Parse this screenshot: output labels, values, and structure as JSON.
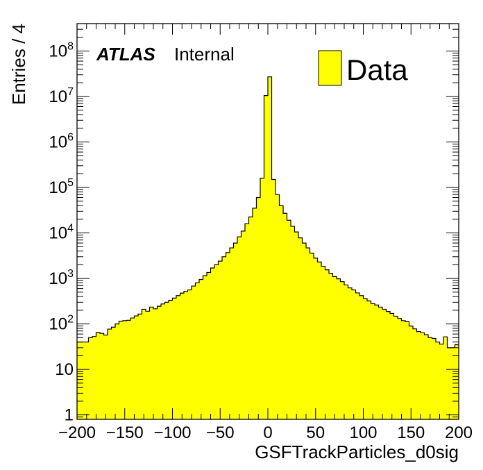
{
  "chart_data": {
    "type": "bar",
    "subtype": "histogram",
    "xlabel": "GSFTrackParticles_d0sig",
    "ylabel": "Entries / 4",
    "xlim": [
      -200,
      200
    ],
    "ylim": [
      0.8,
      400000000
    ],
    "y_scale": "log",
    "grid": false,
    "legend": {
      "position": "top-right",
      "entries": [
        "Data"
      ]
    },
    "experiment_label": "ATLAS",
    "status_label": "Internal",
    "bin_width": 4,
    "x_ticks": [
      "−200",
      "−150",
      "−100",
      "−50",
      "0",
      "50",
      "100",
      "150",
      "200"
    ],
    "x_tick_values": [
      -200,
      -150,
      -100,
      -50,
      0,
      50,
      100,
      150,
      200
    ],
    "y_ticks": [
      {
        "value": 1,
        "base": "1",
        "exp": ""
      },
      {
        "value": 10,
        "base": "10",
        "exp": ""
      },
      {
        "value": 100,
        "base": "10",
        "exp": "2"
      },
      {
        "value": 1000,
        "base": "10",
        "exp": "3"
      },
      {
        "value": 10000,
        "base": "10",
        "exp": "4"
      },
      {
        "value": 100000,
        "base": "10",
        "exp": "5"
      },
      {
        "value": 1000000,
        "base": "10",
        "exp": "6"
      },
      {
        "value": 10000000,
        "base": "10",
        "exp": "7"
      },
      {
        "value": 100000000,
        "base": "10",
        "exp": "8"
      }
    ],
    "series": [
      {
        "name": "Data",
        "color": "#ffff00",
        "edge_color": "#000000",
        "bin_low_edges": [
          -200,
          -196,
          -192,
          -188,
          -184,
          -180,
          -176,
          -172,
          -168,
          -164,
          -160,
          -156,
          -152,
          -148,
          -144,
          -140,
          -136,
          -132,
          -128,
          -124,
          -120,
          -116,
          -112,
          -108,
          -104,
          -100,
          -96,
          -92,
          -88,
          -84,
          -80,
          -76,
          -72,
          -68,
          -64,
          -60,
          -56,
          -52,
          -48,
          -44,
          -40,
          -36,
          -32,
          -28,
          -24,
          -20,
          -16,
          -12,
          -8,
          -4,
          0,
          4,
          8,
          12,
          16,
          20,
          24,
          28,
          32,
          36,
          40,
          44,
          48,
          52,
          56,
          60,
          64,
          68,
          72,
          76,
          80,
          84,
          88,
          92,
          96,
          100,
          104,
          108,
          112,
          116,
          120,
          124,
          128,
          132,
          136,
          140,
          144,
          148,
          152,
          156,
          160,
          164,
          168,
          172,
          176,
          180,
          184,
          188,
          192,
          196
        ],
        "values": [
          40,
          40,
          40,
          50,
          53,
          65,
          62,
          57,
          77,
          85,
          100,
          115,
          118,
          120,
          135,
          150,
          165,
          210,
          190,
          235,
          215,
          245,
          275,
          300,
          330,
          370,
          420,
          475,
          520,
          560,
          680,
          800,
          950,
          1150,
          1350,
          1700,
          2000,
          2400,
          3000,
          3700,
          4700,
          6000,
          8200,
          11000,
          16000,
          22500,
          35000,
          60000,
          160000,
          10500000,
          27000000,
          150000,
          70000,
          40000,
          27000,
          19000,
          14000,
          10500,
          7800,
          6000,
          4700,
          3600,
          2800,
          2300,
          1850,
          1550,
          1300,
          1100,
          980,
          850,
          720,
          620,
          560,
          480,
          420,
          360,
          320,
          280,
          260,
          235,
          210,
          188,
          170,
          148,
          132,
          118,
          112,
          90,
          78,
          68,
          64,
          58,
          50,
          48,
          40,
          36,
          52,
          30,
          30,
          35
        ]
      }
    ]
  }
}
